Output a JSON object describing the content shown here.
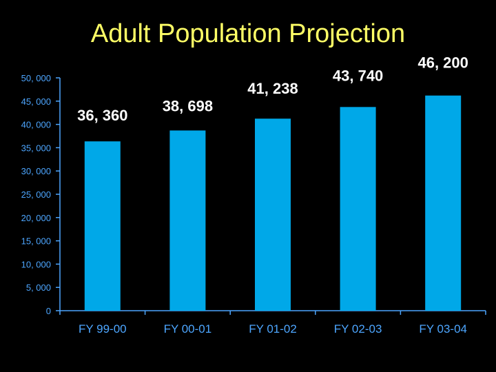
{
  "chart_data": {
    "type": "bar",
    "title": "Adult Population Projection",
    "categories": [
      "FY 99-00",
      "FY 00-01",
      "FY 01-02",
      "FY 02-03",
      "FY 03-04"
    ],
    "values": [
      36360,
      38698,
      41238,
      43740,
      46200
    ],
    "data_labels": [
      "36, 360",
      "38, 698",
      "41, 238",
      "43, 740",
      "46, 200"
    ],
    "y_ticks": [
      0,
      5000,
      10000,
      15000,
      20000,
      25000,
      30000,
      35000,
      40000,
      45000,
      50000
    ],
    "y_tick_labels": [
      "0",
      "5, 000",
      "10, 000",
      "15, 000",
      "20, 000",
      "25, 000",
      "30, 000",
      "35, 000",
      "40, 000",
      "45, 000",
      "50, 000"
    ],
    "ylim": [
      0,
      50000
    ],
    "xlabel": "",
    "ylabel": "",
    "grid": false,
    "legend": "none",
    "colors": {
      "background": "#000000",
      "bar": "#00a8e8",
      "axis": "#4da6ff",
      "title": "#ffff66",
      "data_label": "#ffffff"
    }
  }
}
